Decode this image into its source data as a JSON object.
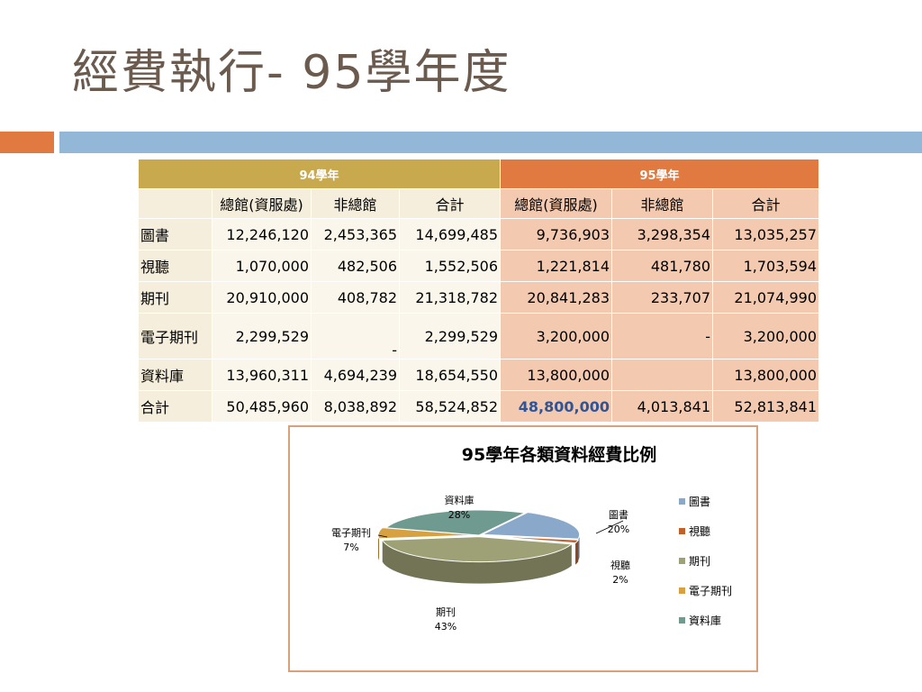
{
  "slide": {
    "title": "經費執行- 95學年度"
  },
  "table": {
    "group_headers": [
      "94學年",
      "95學年"
    ],
    "sub_headers": [
      "總館(資服處)",
      "非總館",
      "合計",
      "總館(資服處)",
      "非總館",
      "合計"
    ],
    "rows": [
      {
        "label": "圖書",
        "cells": [
          "12,246,120",
          "2,453,365",
          "14,699,485",
          "9,736,903",
          "3,298,354",
          "13,035,257"
        ]
      },
      {
        "label": "視聽",
        "cells": [
          "1,070,000",
          "482,506",
          "1,552,506",
          "1,221,814",
          "481,780",
          "1,703,594"
        ]
      },
      {
        "label": "期刊",
        "cells": [
          "20,910,000",
          "408,782",
          "21,318,782",
          "20,841,283",
          "233,707",
          "21,074,990"
        ]
      },
      {
        "label": "電子期刊",
        "cells": [
          "2,299,529",
          "-",
          "2,299,529",
          "3,200,000",
          "-",
          "3,200,000"
        ]
      },
      {
        "label": "資料庫",
        "cells": [
          "13,960,311",
          "4,694,239",
          "18,654,550",
          "13,800,000",
          "",
          "13,800,000"
        ]
      },
      {
        "label": "合計",
        "cells": [
          "50,485,960",
          "8,038,892",
          "58,524,852",
          "48,800,000",
          "4,013,841",
          "52,813,841"
        ]
      }
    ]
  },
  "chart_data": {
    "type": "pie",
    "title": "95學年各類資料經費比例",
    "legend_position": "right",
    "categories": [
      "圖書",
      "視聽",
      "期刊",
      "電子期刊",
      "資料庫"
    ],
    "values": [
      20,
      2,
      43,
      7,
      28
    ],
    "value_labels": [
      "20%",
      "2%",
      "43%",
      "7%",
      "28%"
    ],
    "colors": [
      "#8aa8c9",
      "#c0612b",
      "#9ea176",
      "#d7a040",
      "#6e9a90"
    ]
  }
}
